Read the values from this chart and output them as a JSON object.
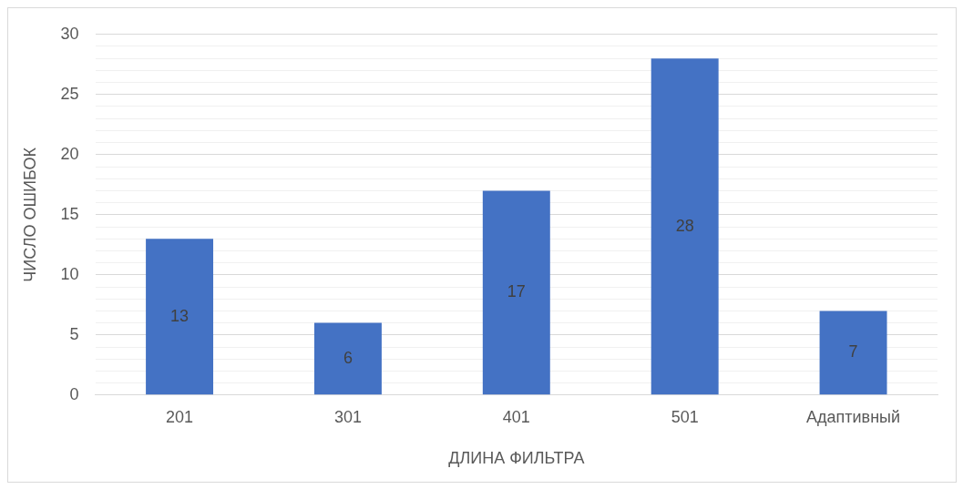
{
  "chart_data": {
    "type": "bar",
    "xlabel": "ДЛИНА ФИЛЬТРА",
    "ylabel": "ЧИСЛО ОШИБОК",
    "categories": [
      "201",
      "301",
      "401",
      "501",
      "Адаптивный"
    ],
    "values": [
      13,
      6,
      17,
      28,
      7
    ],
    "color": "#4472c4",
    "data_labels": true,
    "ylim": [
      0,
      30
    ],
    "yticks": [
      0,
      {
        "value": 1,
        "label": null
      },
      {
        "value": 2,
        "label": null
      },
      {
        "value": 3,
        "label": null
      },
      {
        "value": 4,
        "label": null
      },
      5,
      {
        "value": 6,
        "label": null
      },
      {
        "value": 7,
        "label": null
      },
      {
        "value": 8,
        "label": null
      },
      {
        "value": 9,
        "label": null
      },
      10,
      {
        "value": 11,
        "label": null
      },
      {
        "value": 12,
        "label": null
      },
      {
        "value": 13,
        "label": null
      },
      {
        "value": 14,
        "label": null
      },
      15,
      {
        "value": 16,
        "label": null
      },
      {
        "value": 17,
        "label": null
      },
      {
        "value": 18,
        "label": null
      },
      {
        "value": 19,
        "label": null
      },
      20,
      {
        "value": 21,
        "label": null
      },
      {
        "value": 22,
        "label": null
      },
      {
        "value": 23,
        "label": null
      },
      {
        "value": 24,
        "label": null
      },
      25,
      {
        "value": 26,
        "label": null
      },
      {
        "value": 27,
        "label": null
      },
      {
        "value": 28,
        "label": null
      },
      {
        "value": 29,
        "label": null
      },
      30
    ],
    "grid": "y",
    "legend": false
  }
}
